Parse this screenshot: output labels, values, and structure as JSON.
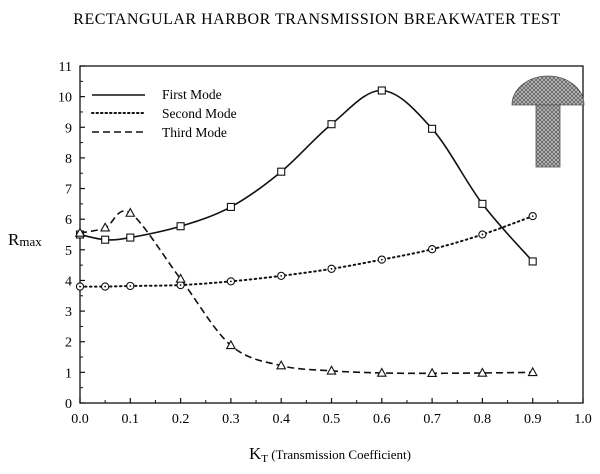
{
  "chart_data": {
    "type": "line",
    "title": "RECTANGULAR HARBOR TRANSMISSION BREAKWATER TEST",
    "ylabel": {
      "main": "R",
      "sub": "max"
    },
    "xlabel": {
      "main": "K",
      "sub": "T",
      "rest": " (Transmission Coefficient)"
    },
    "xlim": [
      0.0,
      1.0
    ],
    "ylim": [
      0,
      11
    ],
    "xticks": [
      "0.0",
      "0.1",
      "0.2",
      "0.3",
      "0.4",
      "0.5",
      "0.6",
      "0.7",
      "0.8",
      "0.9",
      "1.0"
    ],
    "yticks": [
      "0",
      "1",
      "2",
      "3",
      "4",
      "5",
      "6",
      "7",
      "8",
      "9",
      "10",
      "11"
    ],
    "grid": false,
    "legend_position": "top-left",
    "series": [
      {
        "name": "First Mode",
        "style": "solid",
        "marker": "square",
        "x": [
          0.0,
          0.05,
          0.1,
          0.2,
          0.3,
          0.4,
          0.5,
          0.6,
          0.7,
          0.8,
          0.9
        ],
        "y": [
          5.5,
          5.33,
          5.4,
          5.77,
          6.4,
          7.55,
          9.1,
          10.2,
          8.95,
          6.5,
          4.62
        ]
      },
      {
        "name": "Second Mode",
        "style": "dotted",
        "marker": "circle",
        "x": [
          0.0,
          0.05,
          0.1,
          0.2,
          0.3,
          0.4,
          0.5,
          0.6,
          0.7,
          0.8,
          0.9
        ],
        "y": [
          3.8,
          3.8,
          3.82,
          3.85,
          3.97,
          4.15,
          4.38,
          4.68,
          5.02,
          5.5,
          6.1
        ]
      },
      {
        "name": "Third Mode",
        "style": "dashed",
        "marker": "triangle",
        "x": [
          0.0,
          0.05,
          0.1,
          0.2,
          0.3,
          0.4,
          0.5,
          0.6,
          0.7,
          0.8,
          0.9
        ],
        "y": [
          5.55,
          5.72,
          6.2,
          4.05,
          1.88,
          1.22,
          1.05,
          0.98,
          0.97,
          0.98,
          1.0
        ]
      }
    ],
    "colors": {
      "axis": "#111111",
      "line": "#111111",
      "inset_fill": "#8a8a8a"
    }
  }
}
